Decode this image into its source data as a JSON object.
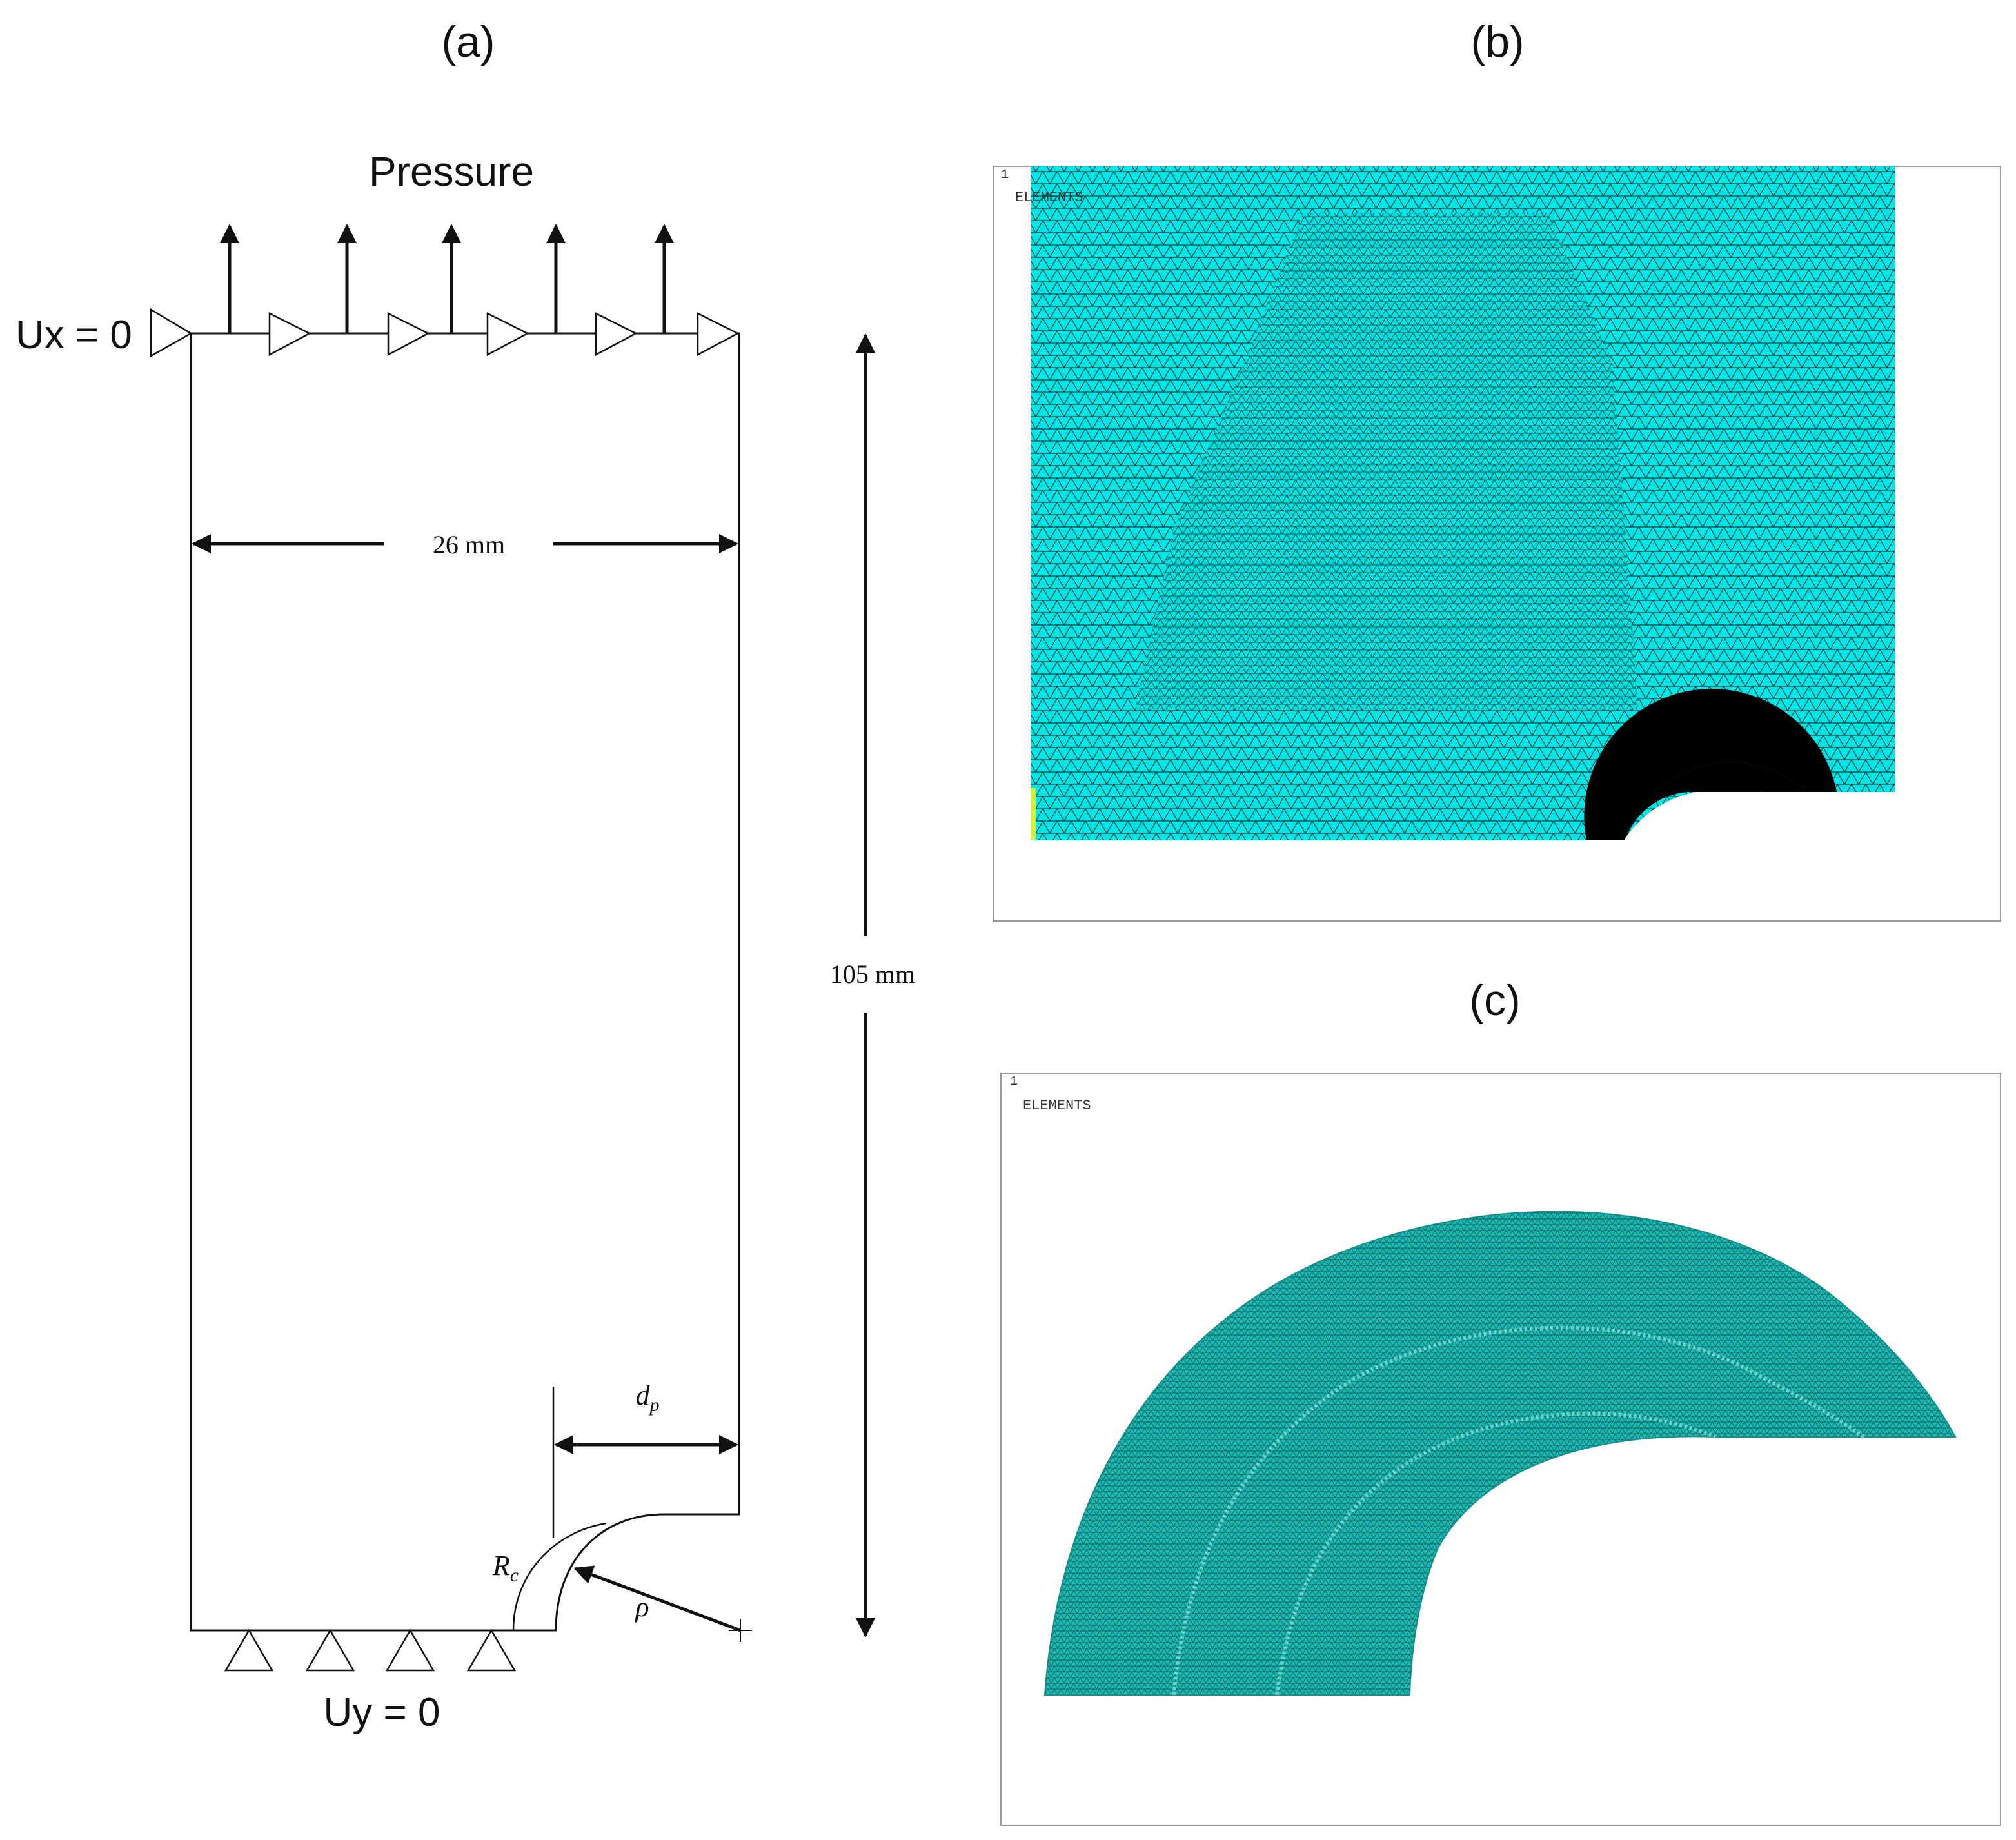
{
  "panels": {
    "a": {
      "label": "(a)"
    },
    "b": {
      "label": "(b)",
      "view_number": "1",
      "view_title": "ELEMENTS"
    },
    "c": {
      "label": "(c)",
      "view_number": "1",
      "view_title": "ELEMENTS"
    }
  },
  "model": {
    "load_label": "Pressure",
    "top_constraint": "Ux = 0",
    "bottom_constraint": "Uy = 0",
    "width_dim": "26 mm",
    "height_dim": "105 mm",
    "depth_symbol": "d",
    "depth_subscript": "p",
    "radius_symbol": "R",
    "radius_subscript": "c",
    "notch_radius_symbol": "ρ"
  },
  "colors": {
    "mesh_fill_b": "#00e5e5",
    "mesh_fill_c": "#18b8b3",
    "mesh_lines": "#0a3a3a",
    "ink": "#111111"
  }
}
